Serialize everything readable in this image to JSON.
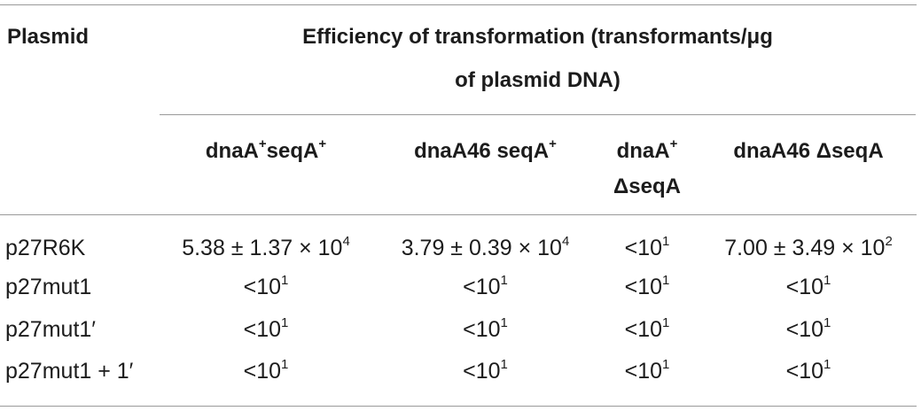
{
  "header": {
    "plasmid": "Plasmid",
    "efficiency_line1": "Efficiency of transformation (transformants/μg",
    "efficiency_line2": "of plasmid DNA)",
    "columns": [
      {
        "base": "dnaA",
        "sup1": "+",
        "mid": "seqA",
        "sup2": "+"
      },
      {
        "base": "dnaA46 seqA",
        "sup1": "+"
      },
      {
        "line1_base": "dnaA",
        "line1_sup": "+",
        "line2": "ΔseqA"
      },
      {
        "text": "dnaA46 ΔseqA"
      }
    ]
  },
  "rows": [
    {
      "label": "p27R6K",
      "cells": [
        {
          "base": "5.38 ± 1.37 × 10",
          "exp": "4"
        },
        {
          "base": "3.79 ± 0.39 × 10",
          "exp": "4"
        },
        {
          "base": "<10",
          "exp": "1"
        },
        {
          "base": "7.00 ± 3.49 × 10",
          "exp": "2"
        }
      ]
    },
    {
      "label": "p27mut1",
      "cells": [
        {
          "base": "<10",
          "exp": "1"
        },
        {
          "base": "<10",
          "exp": "1"
        },
        {
          "base": "<10",
          "exp": "1"
        },
        {
          "base": "<10",
          "exp": "1"
        }
      ]
    },
    {
      "label": "p27mut1′",
      "cells": [
        {
          "base": "<10",
          "exp": "1"
        },
        {
          "base": "<10",
          "exp": "1"
        },
        {
          "base": "<10",
          "exp": "1"
        },
        {
          "base": "<10",
          "exp": "1"
        }
      ]
    },
    {
      "label": "p27mut1 + 1′",
      "cells": [
        {
          "base": "<10",
          "exp": "1"
        },
        {
          "base": "<10",
          "exp": "1"
        },
        {
          "base": "<10",
          "exp": "1"
        },
        {
          "base": "<10",
          "exp": "1"
        }
      ]
    }
  ]
}
